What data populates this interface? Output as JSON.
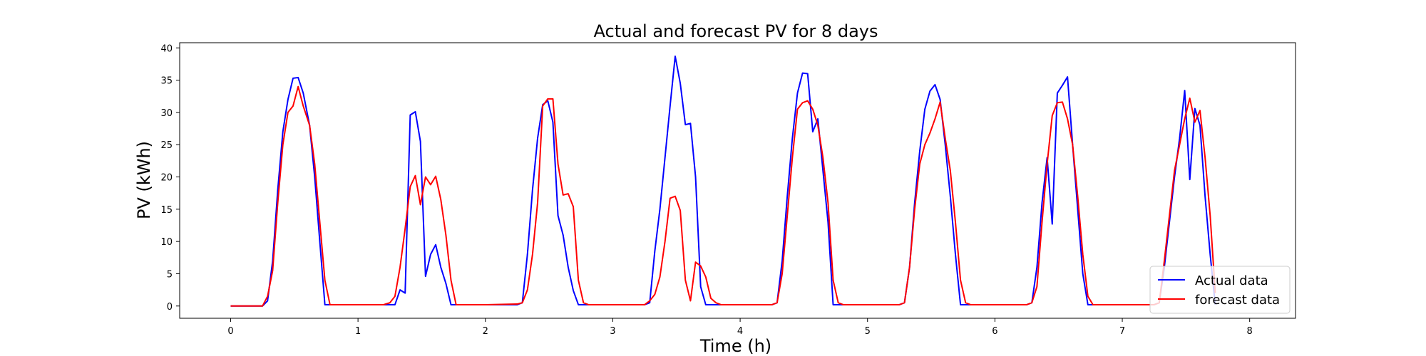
{
  "chart_data": {
    "type": "line",
    "title": "Actual and forecast PV for 8 days",
    "xlabel": "Time (h)",
    "ylabel": "PV (kWh)",
    "xlim": [
      -0.4,
      8.36
    ],
    "ylim": [
      -1.9,
      40.8
    ],
    "x_ticks": [
      0,
      1,
      2,
      3,
      4,
      5,
      6,
      7,
      8
    ],
    "y_ticks": [
      0,
      5,
      10,
      15,
      20,
      25,
      30,
      35,
      40
    ],
    "grid": false,
    "legend_position": "lower-right",
    "series": [
      {
        "name": "Actual data",
        "color": "#0000ff",
        "points": [
          [
            0.0,
            0
          ],
          [
            0.25,
            0
          ],
          [
            0.29,
            0.8
          ],
          [
            0.33,
            7
          ],
          [
            0.37,
            18
          ],
          [
            0.41,
            27
          ],
          [
            0.45,
            32
          ],
          [
            0.49,
            35.3
          ],
          [
            0.53,
            35.4
          ],
          [
            0.57,
            33
          ],
          [
            0.62,
            28
          ],
          [
            0.66,
            20
          ],
          [
            0.7,
            10
          ],
          [
            0.74,
            0.2
          ],
          [
            0.78,
            0.2
          ],
          [
            1.0,
            0.2
          ],
          [
            1.25,
            0.2
          ],
          [
            1.29,
            0.2
          ],
          [
            1.33,
            2.5
          ],
          [
            1.37,
            2
          ],
          [
            1.41,
            29.6
          ],
          [
            1.45,
            30.1
          ],
          [
            1.49,
            25.5
          ],
          [
            1.53,
            4.6
          ],
          [
            1.57,
            8
          ],
          [
            1.61,
            9.5
          ],
          [
            1.65,
            6
          ],
          [
            1.69,
            3.5
          ],
          [
            1.73,
            0.2
          ],
          [
            1.78,
            0.2
          ],
          [
            2.0,
            0.2
          ],
          [
            2.25,
            0.2
          ],
          [
            2.29,
            0.5
          ],
          [
            2.33,
            8
          ],
          [
            2.37,
            18
          ],
          [
            2.41,
            26
          ],
          [
            2.45,
            31.2
          ],
          [
            2.49,
            31.8
          ],
          [
            2.53,
            28.5
          ],
          [
            2.57,
            14
          ],
          [
            2.61,
            11
          ],
          [
            2.65,
            6
          ],
          [
            2.69,
            2.4
          ],
          [
            2.73,
            0.2
          ],
          [
            2.78,
            0.2
          ],
          [
            3.0,
            0.2
          ],
          [
            3.25,
            0.2
          ],
          [
            3.29,
            0.5
          ],
          [
            3.33,
            8.5
          ],
          [
            3.37,
            15
          ],
          [
            3.41,
            23
          ],
          [
            3.45,
            31
          ],
          [
            3.49,
            38.7
          ],
          [
            3.53,
            34.5
          ],
          [
            3.57,
            28.1
          ],
          [
            3.61,
            28.3
          ],
          [
            3.65,
            20
          ],
          [
            3.69,
            3
          ],
          [
            3.73,
            0.2
          ],
          [
            3.78,
            0.2
          ],
          [
            4.0,
            0.2
          ],
          [
            4.25,
            0.2
          ],
          [
            4.29,
            0.5
          ],
          [
            4.33,
            7
          ],
          [
            4.37,
            17
          ],
          [
            4.41,
            26
          ],
          [
            4.45,
            33
          ],
          [
            4.49,
            36.1
          ],
          [
            4.53,
            36
          ],
          [
            4.57,
            27
          ],
          [
            4.61,
            29
          ],
          [
            4.65,
            21
          ],
          [
            4.69,
            13
          ],
          [
            4.73,
            0.2
          ],
          [
            4.78,
            0.2
          ],
          [
            5.0,
            0.2
          ],
          [
            5.25,
            0.2
          ],
          [
            5.29,
            0.5
          ],
          [
            5.33,
            6
          ],
          [
            5.37,
            16
          ],
          [
            5.41,
            24
          ],
          [
            5.45,
            30.5
          ],
          [
            5.49,
            33.3
          ],
          [
            5.53,
            34.3
          ],
          [
            5.57,
            32
          ],
          [
            5.61,
            25
          ],
          [
            5.65,
            17
          ],
          [
            5.69,
            8
          ],
          [
            5.73,
            0.2
          ],
          [
            5.78,
            0.2
          ],
          [
            6.0,
            0.2
          ],
          [
            6.25,
            0.2
          ],
          [
            6.29,
            0.5
          ],
          [
            6.33,
            6
          ],
          [
            6.37,
            16
          ],
          [
            6.41,
            23
          ],
          [
            6.45,
            12.7
          ],
          [
            6.49,
            33
          ],
          [
            6.53,
            34.2
          ],
          [
            6.57,
            35.5
          ],
          [
            6.61,
            25
          ],
          [
            6.65,
            15
          ],
          [
            6.69,
            5
          ],
          [
            6.73,
            0.2
          ],
          [
            6.78,
            0.2
          ],
          [
            7.0,
            0.2
          ],
          [
            7.25,
            0.2
          ],
          [
            7.29,
            0.5
          ],
          [
            7.33,
            6
          ],
          [
            7.37,
            13
          ],
          [
            7.41,
            20
          ],
          [
            7.45,
            26
          ],
          [
            7.49,
            33.4
          ],
          [
            7.53,
            19.6
          ],
          [
            7.57,
            30.6
          ],
          [
            7.61,
            28
          ],
          [
            7.65,
            17
          ],
          [
            7.69,
            8
          ],
          [
            7.73,
            0.2
          ]
        ]
      },
      {
        "name": "forecast data",
        "color": "#ff0000",
        "points": [
          [
            0.0,
            0
          ],
          [
            0.25,
            0
          ],
          [
            0.29,
            1.5
          ],
          [
            0.33,
            5.5
          ],
          [
            0.37,
            16
          ],
          [
            0.41,
            25
          ],
          [
            0.45,
            30
          ],
          [
            0.49,
            31
          ],
          [
            0.53,
            34
          ],
          [
            0.57,
            31
          ],
          [
            0.62,
            28
          ],
          [
            0.66,
            22
          ],
          [
            0.7,
            13
          ],
          [
            0.74,
            4
          ],
          [
            0.78,
            0.2
          ],
          [
            1.0,
            0.2
          ],
          [
            1.2,
            0.2
          ],
          [
            1.25,
            0.5
          ],
          [
            1.29,
            1.5
          ],
          [
            1.33,
            6
          ],
          [
            1.37,
            12
          ],
          [
            1.41,
            18.5
          ],
          [
            1.45,
            20.2
          ],
          [
            1.49,
            15.7
          ],
          [
            1.53,
            20
          ],
          [
            1.57,
            18.8
          ],
          [
            1.61,
            20.1
          ],
          [
            1.65,
            16.5
          ],
          [
            1.69,
            11
          ],
          [
            1.73,
            4
          ],
          [
            1.77,
            0.2
          ],
          [
            2.0,
            0.2
          ],
          [
            2.25,
            0.3
          ],
          [
            2.29,
            0.5
          ],
          [
            2.33,
            2.5
          ],
          [
            2.37,
            8
          ],
          [
            2.41,
            16
          ],
          [
            2.45,
            31
          ],
          [
            2.49,
            32.1
          ],
          [
            2.53,
            32.1
          ],
          [
            2.57,
            22
          ],
          [
            2.61,
            17.2
          ],
          [
            2.65,
            17.4
          ],
          [
            2.69,
            15.4
          ],
          [
            2.73,
            4
          ],
          [
            2.77,
            0.5
          ],
          [
            2.81,
            0.2
          ],
          [
            3.0,
            0.2
          ],
          [
            3.25,
            0.2
          ],
          [
            3.29,
            0.8
          ],
          [
            3.33,
            1.8
          ],
          [
            3.37,
            4.5
          ],
          [
            3.41,
            10
          ],
          [
            3.45,
            16.7
          ],
          [
            3.49,
            17
          ],
          [
            3.53,
            14.8
          ],
          [
            3.57,
            4
          ],
          [
            3.61,
            0.8
          ],
          [
            3.65,
            6.8
          ],
          [
            3.69,
            6.2
          ],
          [
            3.73,
            4.5
          ],
          [
            3.77,
            1.2
          ],
          [
            3.81,
            0.5
          ],
          [
            3.85,
            0.2
          ],
          [
            4.0,
            0.2
          ],
          [
            4.25,
            0.2
          ],
          [
            4.29,
            0.5
          ],
          [
            4.33,
            5
          ],
          [
            4.37,
            14
          ],
          [
            4.41,
            23
          ],
          [
            4.45,
            30.5
          ],
          [
            4.49,
            31.5
          ],
          [
            4.53,
            31.8
          ],
          [
            4.57,
            30.5
          ],
          [
            4.61,
            28
          ],
          [
            4.65,
            23
          ],
          [
            4.69,
            16
          ],
          [
            4.73,
            4
          ],
          [
            4.77,
            0.5
          ],
          [
            4.81,
            0.2
          ],
          [
            5.0,
            0.2
          ],
          [
            5.25,
            0.2
          ],
          [
            5.29,
            0.5
          ],
          [
            5.33,
            6
          ],
          [
            5.37,
            15
          ],
          [
            5.41,
            22
          ],
          [
            5.45,
            25
          ],
          [
            5.49,
            26.8
          ],
          [
            5.53,
            29
          ],
          [
            5.57,
            31.6
          ],
          [
            5.61,
            26
          ],
          [
            5.65,
            21
          ],
          [
            5.69,
            13
          ],
          [
            5.73,
            4
          ],
          [
            5.77,
            0.5
          ],
          [
            5.81,
            0.2
          ],
          [
            6.0,
            0.2
          ],
          [
            6.25,
            0.2
          ],
          [
            6.29,
            0.5
          ],
          [
            6.33,
            3
          ],
          [
            6.37,
            13
          ],
          [
            6.41,
            22
          ],
          [
            6.45,
            29.5
          ],
          [
            6.49,
            31.5
          ],
          [
            6.53,
            31.6
          ],
          [
            6.57,
            29
          ],
          [
            6.61,
            25
          ],
          [
            6.65,
            17
          ],
          [
            6.69,
            8
          ],
          [
            6.73,
            1.5
          ],
          [
            6.77,
            0.2
          ],
          [
            7.0,
            0.2
          ],
          [
            7.25,
            0.2
          ],
          [
            7.29,
            0.5
          ],
          [
            7.33,
            7
          ],
          [
            7.37,
            14
          ],
          [
            7.41,
            21
          ],
          [
            7.45,
            25
          ],
          [
            7.49,
            29
          ],
          [
            7.53,
            32.2
          ],
          [
            7.57,
            28.5
          ],
          [
            7.61,
            30.3
          ],
          [
            7.65,
            23
          ],
          [
            7.69,
            14
          ],
          [
            7.73,
            2
          ]
        ]
      }
    ]
  }
}
